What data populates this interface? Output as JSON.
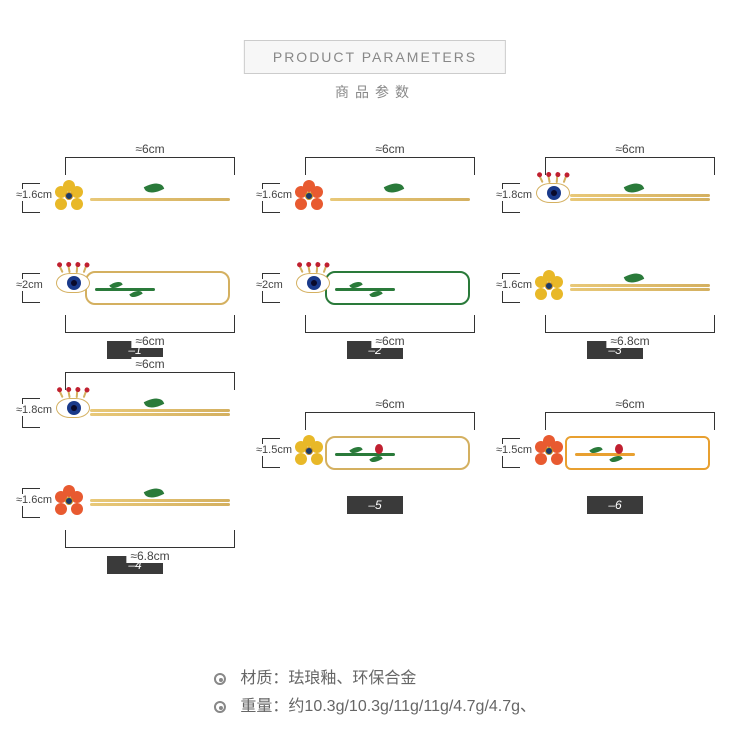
{
  "header": {
    "title_en": "PRODUCT  PARAMETERS",
    "title_cn": "商品参数"
  },
  "colors": {
    "gold": "#d4b060",
    "green": "#2a7a3a",
    "yellow_flower": "#e8b828",
    "red_flower": "#e85a30",
    "iris": "#1a3a8a",
    "lash_bead": "#c02030",
    "tag_bg": "#3a3a3a",
    "text": "#666666"
  },
  "items": [
    {
      "tag": "–1",
      "pairs": [
        {
          "width": "≈6cm",
          "height": "≈1.6cm",
          "shape": "pin",
          "charm": "flower-yellow",
          "leaf": true
        },
        {
          "width": "≈6cm",
          "height": "≈2cm",
          "shape": "frame-gold",
          "charm": "eye",
          "stem": true,
          "bottom": true
        }
      ]
    },
    {
      "tag": "–2",
      "pairs": [
        {
          "width": "≈6cm",
          "height": "≈1.6cm",
          "shape": "pin",
          "charm": "flower-red",
          "leaf": true
        },
        {
          "width": "≈6cm",
          "height": "≈2cm",
          "shape": "frame-green",
          "charm": "eye",
          "stem": true,
          "bottom": true
        }
      ]
    },
    {
      "tag": "–3",
      "pairs": [
        {
          "width": "≈6cm",
          "height": "≈1.8cm",
          "shape": "pin-wave",
          "charm": "eye",
          "leaf": true
        },
        {
          "width": "≈6.8cm",
          "height": "≈1.6cm",
          "shape": "pin-wave",
          "charm": "flower-yellow",
          "leaf": true,
          "bottom": true
        }
      ]
    },
    {
      "tag": "–4",
      "pairs": [
        {
          "width": "≈6cm",
          "height": "≈1.8cm",
          "shape": "pin-wave",
          "charm": "eye",
          "leaf": true
        },
        {
          "width": "≈6.8cm",
          "height": "≈1.6cm",
          "shape": "pin-wave",
          "charm": "flower-red",
          "leaf": true,
          "bottom": true
        }
      ]
    },
    {
      "tag": "–5",
      "pairs": [
        {
          "width": "≈6cm",
          "height": "≈1.5cm",
          "shape": "frame-gold",
          "charm": "flower-yellow",
          "stem": true,
          "bug": true,
          "center": true
        }
      ]
    },
    {
      "tag": "–6",
      "pairs": [
        {
          "width": "≈6cm",
          "height": "≈1.5cm",
          "shape": "frame-orange",
          "charm": "flower-red",
          "stem_orange": true,
          "bug": true,
          "center": true
        }
      ]
    }
  ],
  "material": {
    "label": "材质：",
    "value": "珐琅釉、环保合金"
  },
  "weight": {
    "label": "重量：",
    "value": "约10.3g/10.3g/11g/11g/4.7g/4.7g、"
  }
}
